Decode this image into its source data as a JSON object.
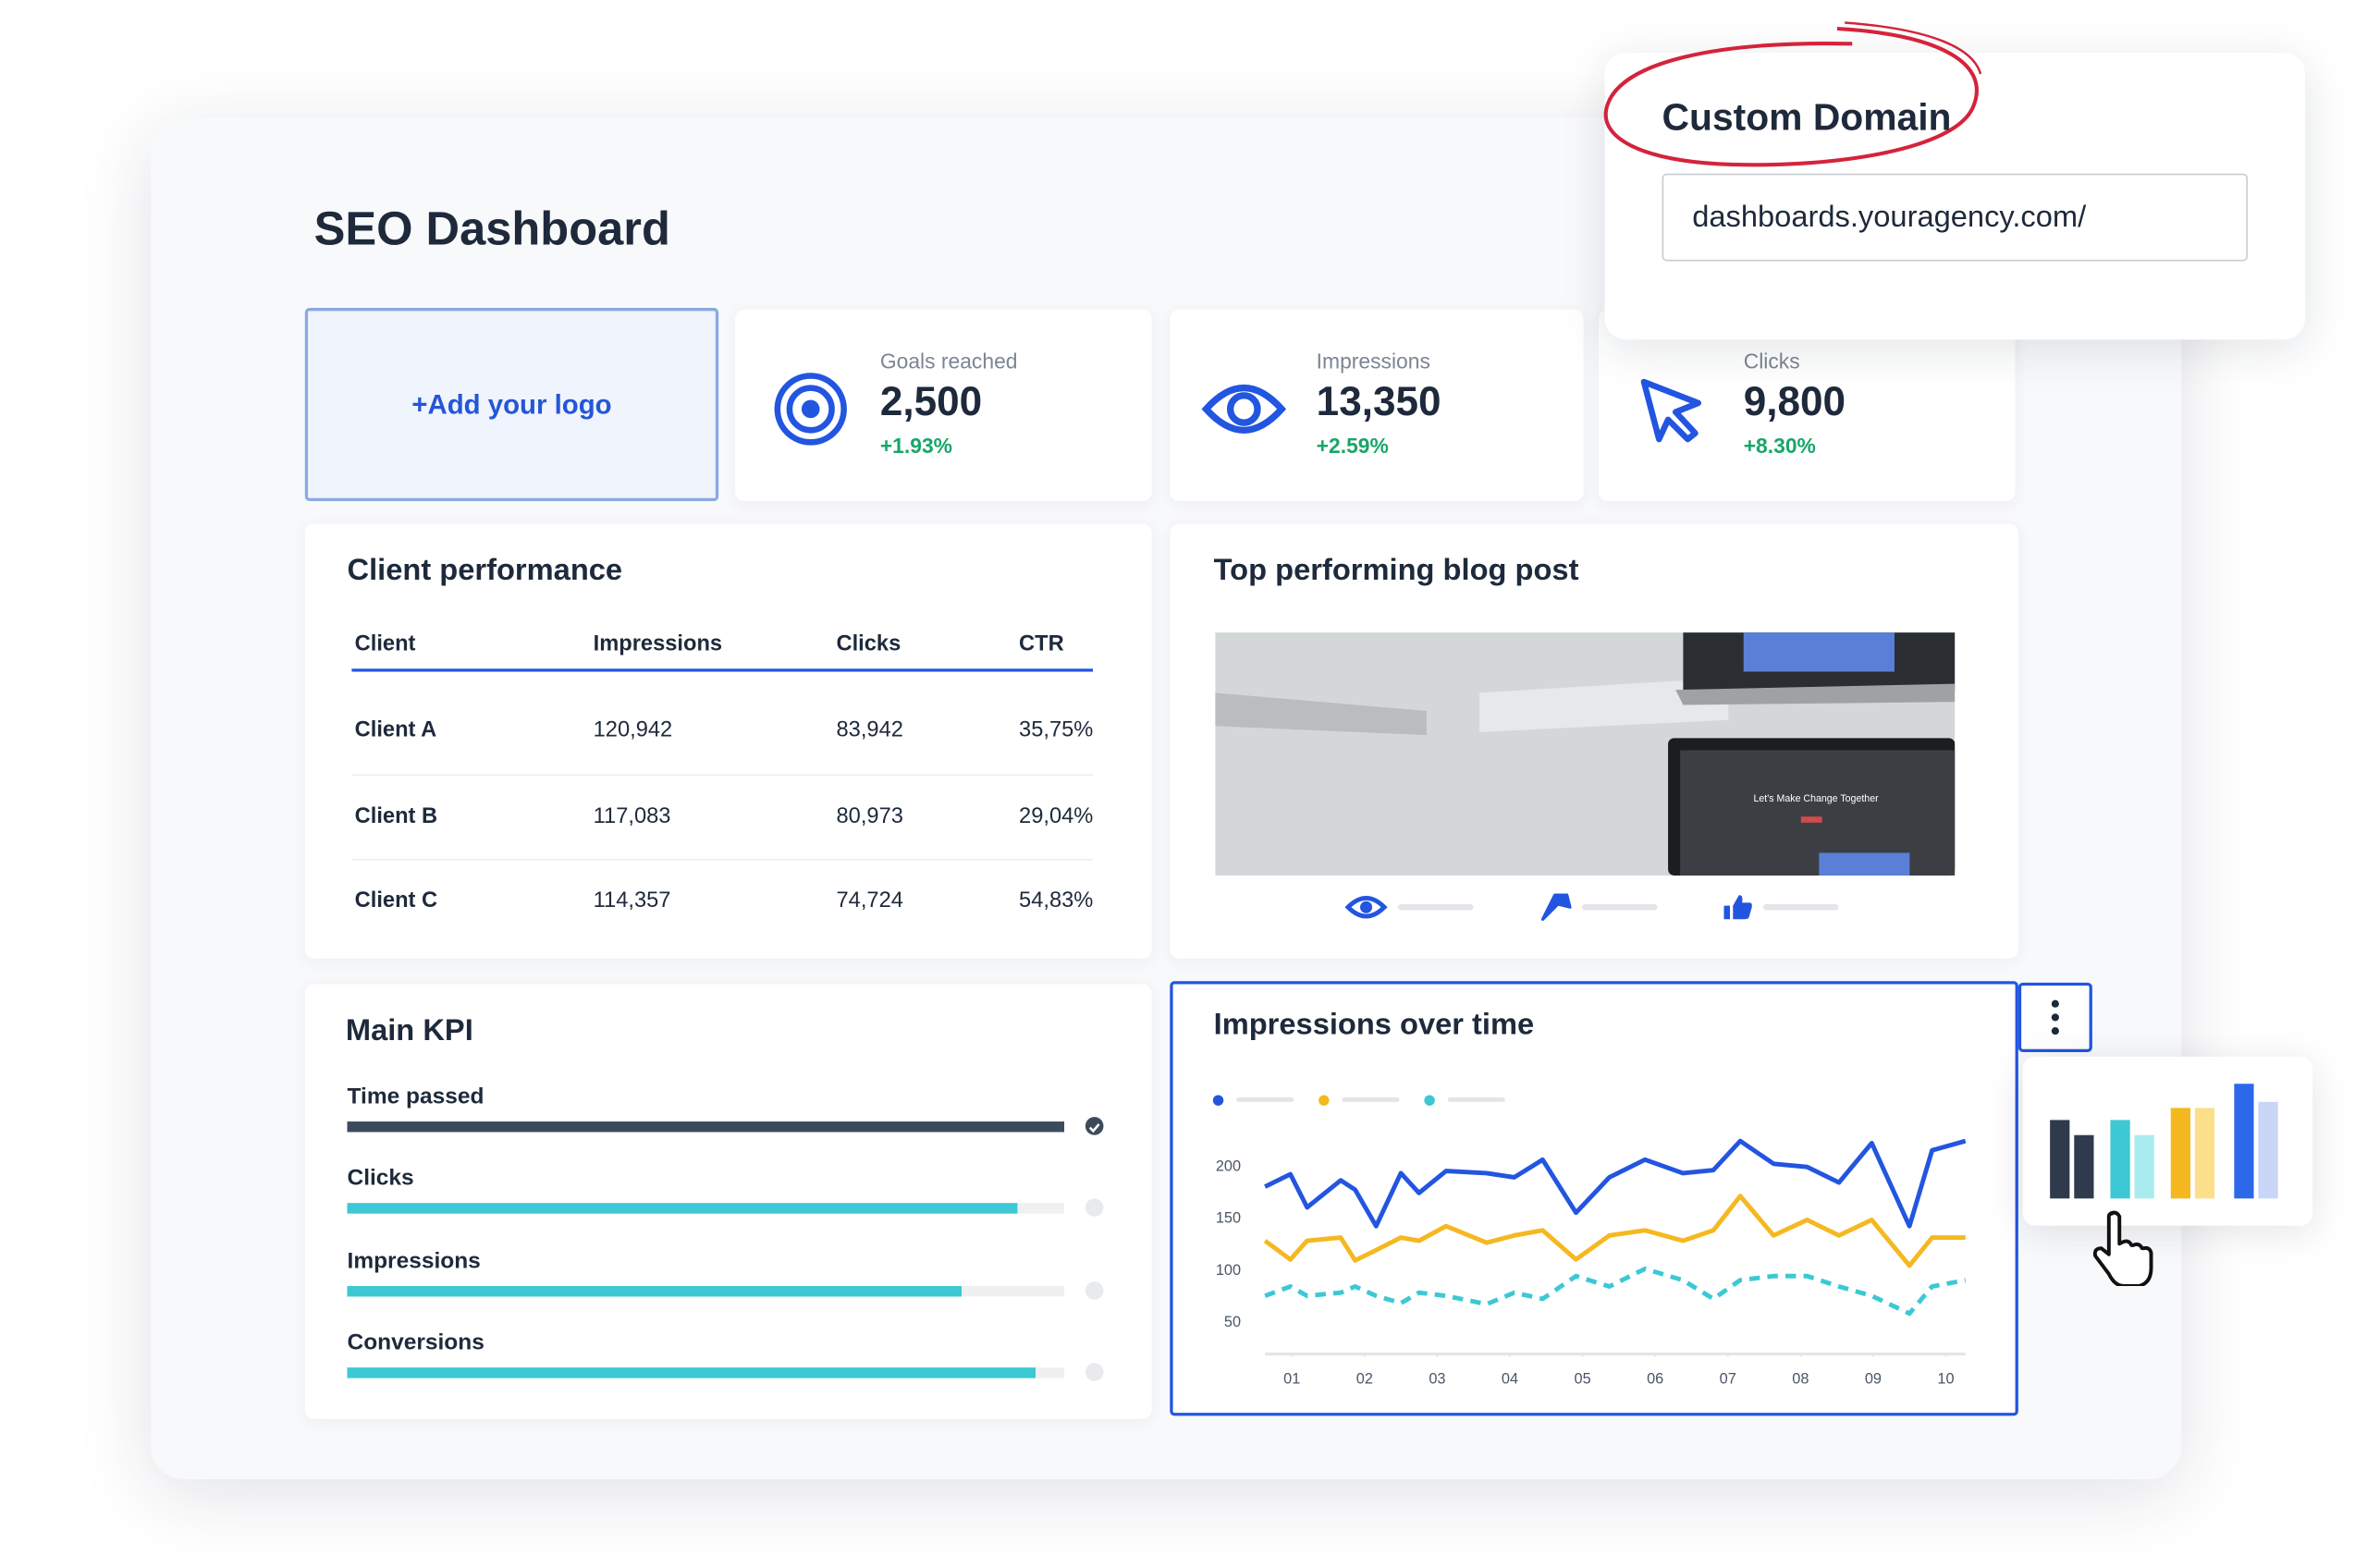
{
  "custom_domain": {
    "title": "Custom Domain",
    "url": "dashboards.youragency.com/"
  },
  "dashboard": {
    "title": "SEO Dashboard",
    "logo_placeholder": "+Add your logo"
  },
  "stats": [
    {
      "label": "Goals reached",
      "value": "2,500",
      "change": "+1.93%"
    },
    {
      "label": "Impressions",
      "value": "13,350",
      "change": "+2.59%"
    },
    {
      "label": "Clicks",
      "value": "9,800",
      "change": "+8.30%"
    }
  ],
  "client_performance": {
    "title": "Client performance",
    "columns": [
      "Client",
      "Impressions",
      "Clicks",
      "CTR"
    ],
    "rows": [
      [
        "Client A",
        "120,942",
        "83,942",
        "35,75%"
      ],
      [
        "Client B",
        "117,083",
        "80,973",
        "29,04%"
      ],
      [
        "Client C",
        "114,357",
        "74,724",
        "54,83%"
      ]
    ]
  },
  "blog": {
    "title": "Top performing blog post",
    "image_text": "Let's Make Change Together"
  },
  "main_kpi": {
    "title": "Main KPI",
    "items": [
      {
        "label": "Time passed",
        "progress": 100
      },
      {
        "label": "Clicks",
        "progress": 93.5
      },
      {
        "label": "Impressions",
        "progress": 85.7
      },
      {
        "label": "Conversions",
        "progress": 96
      }
    ]
  },
  "chart_data": {
    "type": "line",
    "title": "Impressions over time",
    "x": [
      0.63,
      0.98,
      1.21,
      1.67,
      1.87,
      2.16,
      2.5,
      2.75,
      3.12,
      3.68,
      4.06,
      4.45,
      4.91,
      5.37,
      5.86,
      6.38,
      6.8,
      7.17,
      7.63,
      8.09,
      8.53,
      8.98,
      9.5,
      9.81,
      10.27
    ],
    "xlim": [
      0.63,
      10.27
    ],
    "xticks": [
      {
        "value": 1,
        "label": "01"
      },
      {
        "value": 2,
        "label": "02"
      },
      {
        "value": 3,
        "label": "03"
      },
      {
        "value": 4,
        "label": "04"
      },
      {
        "value": 5,
        "label": "05"
      },
      {
        "value": 6,
        "label": "06"
      },
      {
        "value": 7,
        "label": "07"
      },
      {
        "value": 8,
        "label": "08"
      },
      {
        "value": 9,
        "label": "09"
      },
      {
        "value": 10,
        "label": "10"
      }
    ],
    "ylim": [
      20,
      235
    ],
    "yticks": [
      50,
      100,
      150,
      200
    ],
    "series": [
      {
        "color": "#2255e0",
        "dashed": false,
        "values": [
          181,
          193,
          161,
          187,
          178,
          143,
          194,
          175,
          196,
          194,
          190,
          207,
          156,
          190,
          207,
          194,
          197,
          225,
          203,
          200,
          185,
          223,
          143,
          216,
          225
        ]
      },
      {
        "color": "#f5b820",
        "dashed": false,
        "values": [
          129,
          111,
          129,
          132,
          110,
          120,
          132,
          129,
          143,
          127,
          134,
          139,
          111,
          134,
          139,
          129,
          139,
          172,
          134,
          149,
          134,
          149,
          105,
          132,
          132
        ]
      },
      {
        "color": "#3cc8d4",
        "dashed": true,
        "values": [
          76,
          85,
          76,
          79,
          85,
          76,
          69,
          79,
          76,
          68,
          79,
          73,
          95,
          85,
          102,
          91,
          73,
          91,
          95,
          95,
          85,
          76,
          59,
          85,
          91
        ]
      }
    ]
  }
}
